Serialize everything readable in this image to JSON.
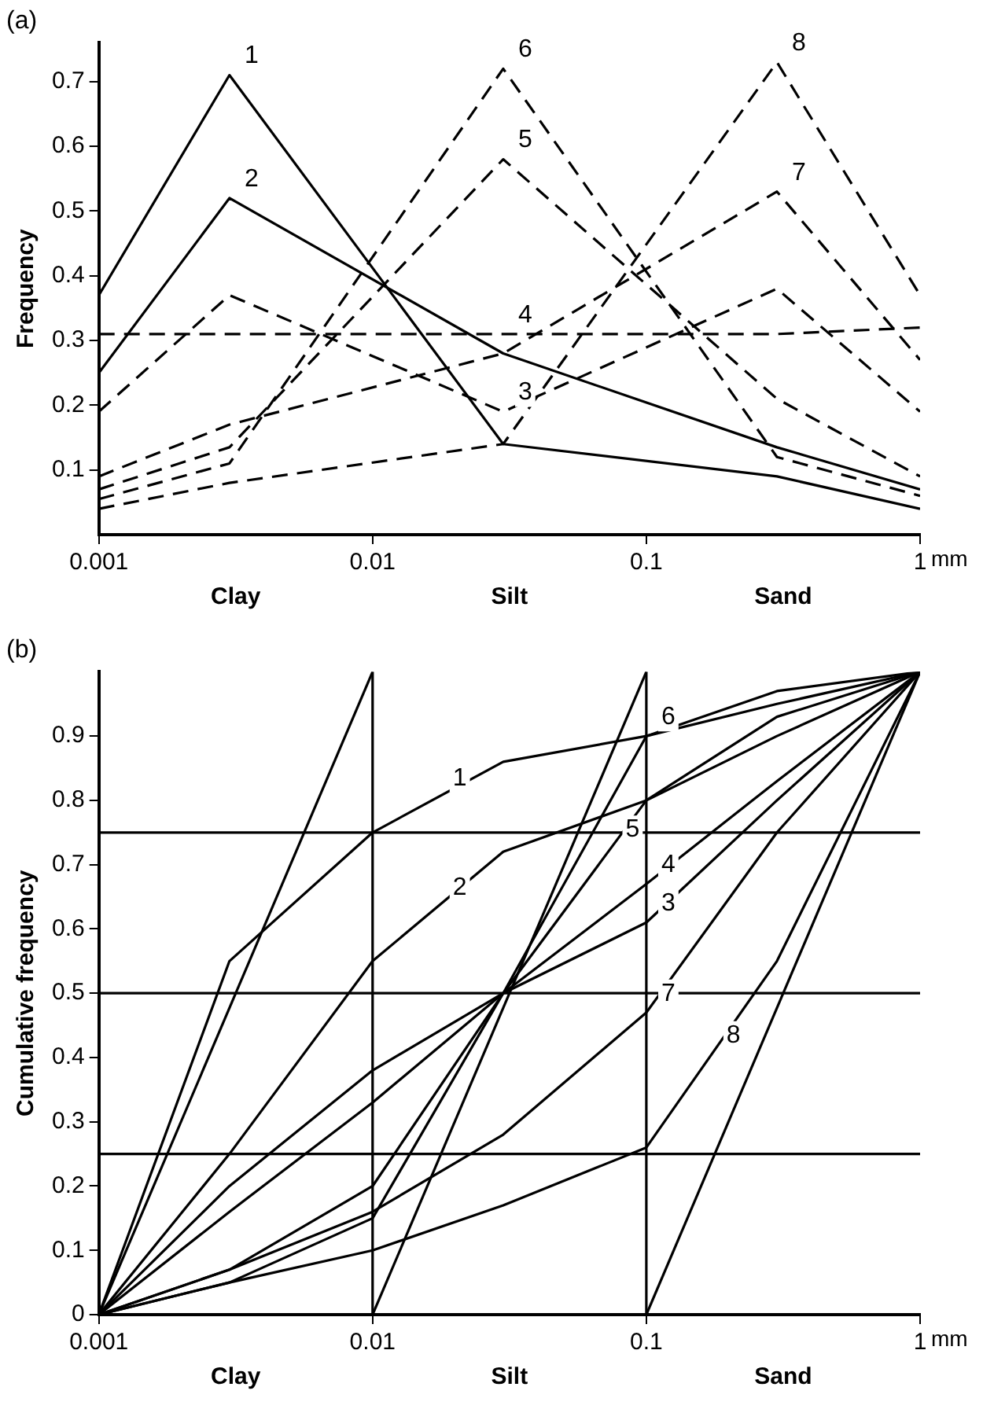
{
  "chart_data": [
    {
      "type": "line",
      "title": "(a)",
      "ylabel": "Frequency",
      "xlabel": "mm",
      "log": "x",
      "x": [
        0.001,
        0.003,
        0.03,
        0.3,
        1
      ],
      "xlim": [
        0.001,
        1
      ],
      "xticks": [
        0.001,
        0.01,
        0.1,
        1
      ],
      "ylim": [
        0,
        0.76
      ],
      "yticks": [
        0.1,
        0.2,
        0.3,
        0.4,
        0.5,
        0.6,
        0.7
      ],
      "series": [
        {
          "color": "#000000",
          "line_style": "solid",
          "values": [
            0.37,
            0.71,
            0.14,
            0.09,
            0.04
          ]
        },
        {
          "color": "#000000",
          "line_style": "solid",
          "values": [
            0.25,
            0.52,
            0.28,
            0.135,
            0.07
          ]
        },
        {
          "color": "#000000",
          "line_style": "dashed",
          "values": [
            0.19,
            0.37,
            0.19,
            0.38,
            0.19
          ]
        },
        {
          "color": "#000000",
          "line_style": "dashed",
          "values": [
            0.31,
            0.31,
            0.31,
            0.31,
            0.32
          ]
        },
        {
          "color": "#000000",
          "line_style": "dashed",
          "values": [
            0.07,
            0.135,
            0.58,
            0.21,
            0.09
          ]
        },
        {
          "color": "#000000",
          "line_style": "dashed",
          "values": [
            0.055,
            0.11,
            0.72,
            0.12,
            0.06
          ]
        },
        {
          "color": "#000000",
          "line_style": "dashed",
          "values": [
            0.09,
            0.17,
            0.28,
            0.53,
            0.27
          ]
        },
        {
          "color": "#000000",
          "line_style": "dashed",
          "values": [
            0.04,
            0.08,
            0.14,
            0.73,
            0.37
          ]
        }
      ],
      "annotations": [
        "Clay",
        "Silt",
        "Sand",
        {
          "text": "1",
          "x": 0.003,
          "y": 0.71
        },
        {
          "text": "2",
          "x": 0.003,
          "y": 0.52
        },
        {
          "text": "3",
          "x": 0.03,
          "y": 0.19
        },
        {
          "text": "4",
          "x": 0.03,
          "y": 0.31
        },
        {
          "text": "5",
          "x": 0.03,
          "y": 0.58
        },
        {
          "text": "6",
          "x": 0.03,
          "y": 0.72
        },
        {
          "text": "7",
          "x": 0.3,
          "y": 0.53
        },
        {
          "text": "8",
          "x": 0.3,
          "y": 0.73
        }
      ]
    },
    {
      "type": "line",
      "title": "(b)",
      "ylabel": "Cumulative frequency",
      "xlabel": "mm",
      "log": "x",
      "x": [
        0.001,
        0.003,
        0.01,
        0.03,
        0.1,
        0.3,
        1
      ],
      "xlim": [
        0.001,
        1
      ],
      "xticks": [
        0.001,
        0.01,
        0.1,
        1
      ],
      "ylim": [
        0,
        1
      ],
      "yticks": [
        0,
        0.1,
        0.2,
        0.3,
        0.4,
        0.5,
        0.6,
        0.7,
        0.8,
        0.9
      ],
      "series": [
        {
          "color": "#000000",
          "values": [
            0,
            0.55,
            0.75,
            0.86,
            0.9,
            0.95,
            1
          ]
        },
        {
          "color": "#000000",
          "values": [
            0,
            0.25,
            0.55,
            0.72,
            0.8,
            0.9,
            1
          ]
        },
        {
          "color": "#000000",
          "values": [
            0,
            0.2,
            0.38,
            0.5,
            0.61,
            0.8,
            1
          ]
        },
        {
          "color": "#000000",
          "values": [
            0,
            0.16,
            0.33,
            0.5,
            0.67,
            0.83,
            1
          ]
        },
        {
          "color": "#000000",
          "values": [
            0,
            0.07,
            0.2,
            0.5,
            0.8,
            0.93,
            1
          ]
        },
        {
          "color": "#000000",
          "values": [
            0,
            0.05,
            0.15,
            0.5,
            0.9,
            0.97,
            1
          ]
        },
        {
          "color": "#000000",
          "values": [
            0,
            0.07,
            0.16,
            0.28,
            0.47,
            0.75,
            1
          ]
        },
        {
          "color": "#000000",
          "values": [
            0,
            0.05,
            0.1,
            0.17,
            0.26,
            0.55,
            1
          ]
        },
        {
          "color": "#000000",
          "x": [
            0.001,
            0.01
          ],
          "values": [
            0,
            1
          ]
        },
        {
          "color": "#000000",
          "x": [
            0.01,
            0.1
          ],
          "values": [
            0,
            1
          ]
        },
        {
          "color": "#000000",
          "x": [
            0.1,
            1
          ],
          "values": [
            0,
            1
          ]
        }
      ],
      "ref_lines": [
        {
          "axis": "y",
          "value": 0.25
        },
        {
          "axis": "y",
          "value": 0.5
        },
        {
          "axis": "y",
          "value": 0.75
        },
        {
          "axis": "x",
          "value": 0.01
        },
        {
          "axis": "x",
          "value": 0.1
        }
      ],
      "annotations": [
        "Clay",
        "Silt",
        "Sand",
        {
          "text": "1",
          "x": 0.0173,
          "y": 0.805
        },
        {
          "text": "2",
          "x": 0.0173,
          "y": 0.635
        },
        {
          "text": "3",
          "x": 0.1,
          "y": 0.61
        },
        {
          "text": "4",
          "x": 0.1,
          "y": 0.67
        },
        {
          "text": "5",
          "x": 0.074,
          "y": 0.725
        },
        {
          "text": "6",
          "x": 0.1,
          "y": 0.9
        },
        {
          "text": "7",
          "x": 0.1,
          "y": 0.47
        },
        {
          "text": "8",
          "x": 0.173,
          "y": 0.405
        }
      ]
    }
  ]
}
